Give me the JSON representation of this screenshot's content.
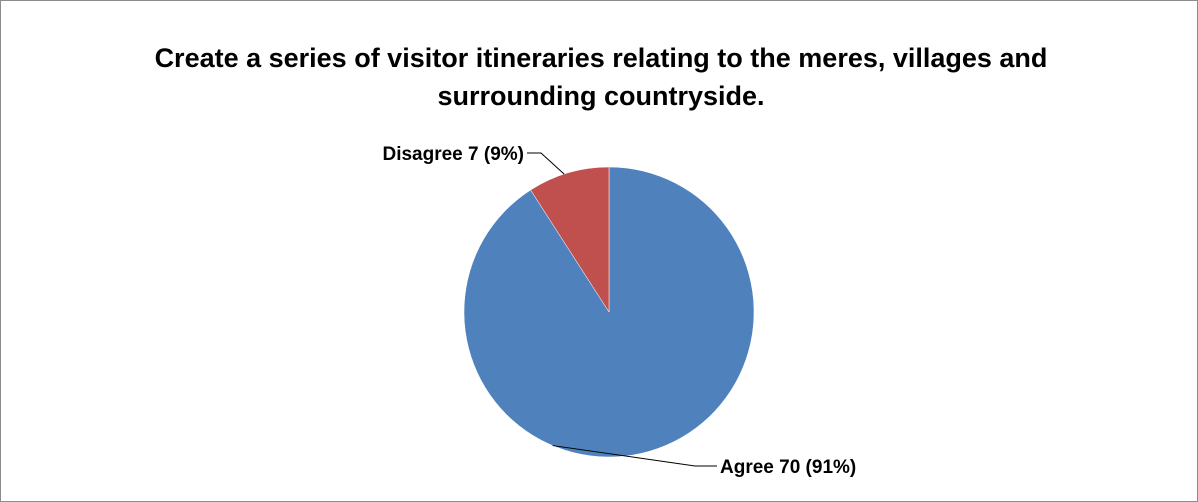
{
  "chart_data": {
    "type": "pie",
    "title": "Create a series of visitor itineraries relating to the meres, villages and surrounding countryside.",
    "slices": [
      {
        "label": "Agree",
        "value": 70,
        "percent": "91%",
        "display": "Agree 70 (91%)",
        "color": "#4f81bd"
      },
      {
        "label": "Disagree",
        "value": 7,
        "percent": "9%",
        "display": "Disagree 7 (9%)",
        "color": "#c0504d"
      }
    ],
    "legend": "none"
  }
}
